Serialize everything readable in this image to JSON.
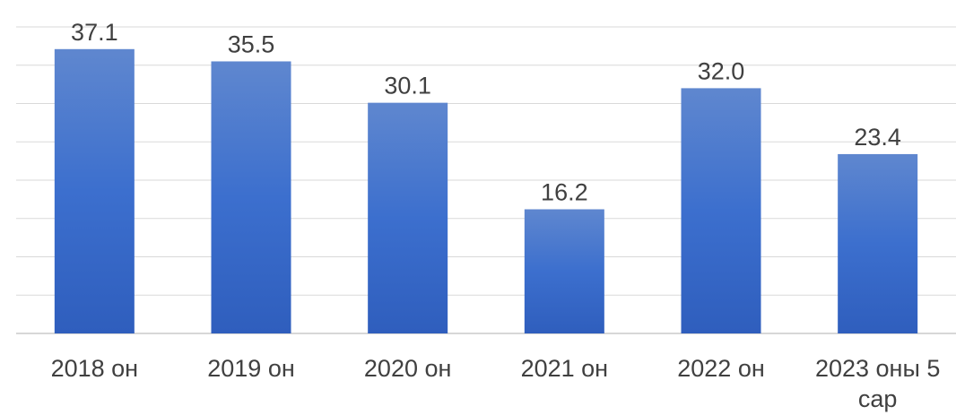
{
  "chart_data": {
    "type": "bar",
    "categories": [
      "2018 он",
      "2019 он",
      "2020 он",
      "2021 он",
      "2022 он",
      "2023 оны 5 сар"
    ],
    "values": [
      37.1,
      35.5,
      30.1,
      16.2,
      32.0,
      23.4
    ],
    "ylim": [
      0,
      40
    ],
    "grid": true,
    "gridlines_every": 5,
    "legend": "none",
    "bar_color": "#3c6fce"
  }
}
